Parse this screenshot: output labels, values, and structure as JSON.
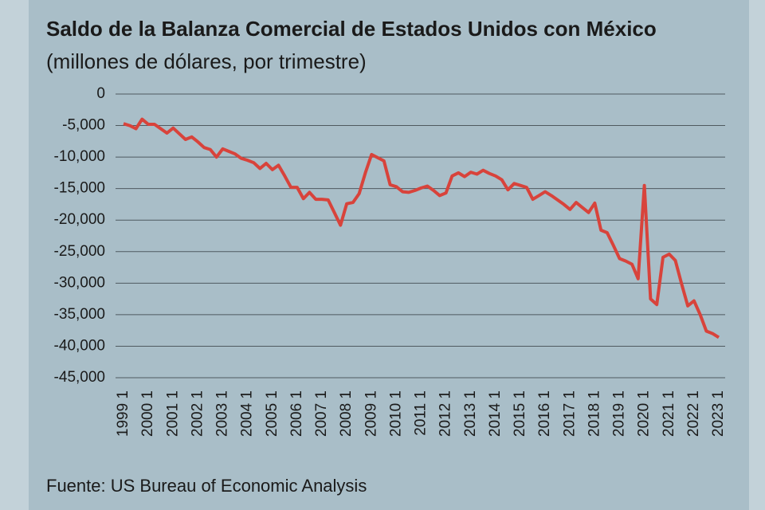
{
  "chart_data": {
    "type": "line",
    "title": "Saldo de la Balanza Comercial de Estados Unidos con México",
    "subtitle": "(millones de dólares, por trimestre)",
    "source": "Fuente: US Bureau of Economic Analysis",
    "categories": [
      "1999 1",
      null,
      null,
      null,
      "2000 1",
      null,
      null,
      null,
      "2001 1",
      null,
      null,
      null,
      "2002 1",
      null,
      null,
      null,
      "2003 1",
      null,
      null,
      null,
      "2004 1",
      null,
      null,
      null,
      "2005 1",
      null,
      null,
      null,
      "2006 1",
      null,
      null,
      null,
      "2007 1",
      null,
      null,
      null,
      "2008 1",
      null,
      null,
      null,
      "2009 1",
      null,
      null,
      null,
      "2010 1",
      null,
      null,
      null,
      "2011 1",
      null,
      null,
      null,
      "2012 1",
      null,
      null,
      null,
      "2013 1",
      null,
      null,
      null,
      "2014 1",
      null,
      null,
      null,
      "2015 1",
      null,
      null,
      null,
      "2016 1",
      null,
      null,
      null,
      "2017 1",
      null,
      null,
      null,
      "2018 1",
      null,
      null,
      null,
      "2019 1",
      null,
      null,
      null,
      "2020 1",
      null,
      null,
      null,
      "2021 1",
      null,
      null,
      null,
      "2022 1",
      null,
      null,
      null,
      "2023 1"
    ],
    "values": [
      -4700,
      -5000,
      -5500,
      -4000,
      -4800,
      -4800,
      -5500,
      -6200,
      -5400,
      -6300,
      -7200,
      -6800,
      -7600,
      -8500,
      -8800,
      -10000,
      -8700,
      -9100,
      -9500,
      -10200,
      -10500,
      -10900,
      -11800,
      -11000,
      -12000,
      -11300,
      -13000,
      -14800,
      -14800,
      -16600,
      -15600,
      -16700,
      -16700,
      -16800,
      -18800,
      -20800,
      -17400,
      -17200,
      -15800,
      -12500,
      -9600,
      -10100,
      -10600,
      -14400,
      -14700,
      -15500,
      -15600,
      -15300,
      -14900,
      -14600,
      -15300,
      -16100,
      -15700,
      -13000,
      -12500,
      -13100,
      -12400,
      -12700,
      -12100,
      -12600,
      -13000,
      -13600,
      -15200,
      -14200,
      -14500,
      -14800,
      -16700,
      -16100,
      -15500,
      -16100,
      -16800,
      -17500,
      -18300,
      -17200,
      -18000,
      -18800,
      -17300,
      -21600,
      -22000,
      -24000,
      -26100,
      -26500,
      -27000,
      -29300,
      -14500,
      -32500,
      -33400,
      -25900,
      -25400,
      -26400,
      -30100,
      -33600,
      -32800,
      -35000,
      -37600,
      -38000,
      -38600
    ],
    "color": "#d8433b",
    "ylim": [
      0,
      -45000
    ],
    "yticks": [
      0,
      {
        "value": -5000,
        "label": "-5,000"
      },
      {
        "value": -10000,
        "label": "-10,000"
      },
      {
        "value": -15000,
        "label": "-15,000"
      },
      {
        "value": -20000,
        "label": "-20,000"
      },
      {
        "value": -25000,
        "label": "-25,000"
      },
      {
        "value": -30000,
        "label": "-30,000"
      },
      {
        "value": -35000,
        "label": "-35,000"
      },
      {
        "value": -40000,
        "label": "-40,000"
      },
      {
        "value": -45000,
        "label": "-45,000"
      }
    ],
    "grid": true
  }
}
